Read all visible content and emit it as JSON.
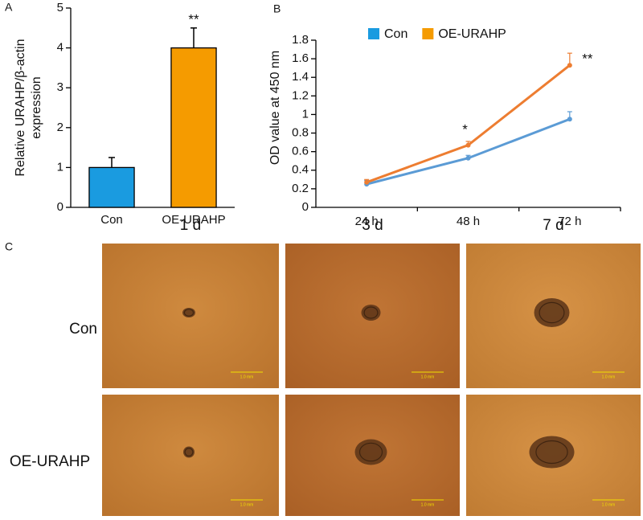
{
  "chart_data": [
    {
      "type": "bar",
      "panel": "A",
      "ylabel": [
        "Relative URAHP/β-actin",
        "expression"
      ],
      "categories": [
        "Con",
        "OE-URAHP"
      ],
      "values": [
        1.0,
        4.0
      ],
      "errors": [
        0.25,
        0.5
      ],
      "colors": [
        "#1a9be0",
        "#f59b00"
      ],
      "significance": [
        null,
        "**"
      ],
      "ylim": [
        0,
        5
      ],
      "yticks": [
        0,
        1,
        2,
        3,
        4,
        5
      ]
    },
    {
      "type": "line",
      "panel": "B",
      "ylabel": "OD value at 450 nm",
      "categories": [
        "24 h",
        "48 h",
        "72 h"
      ],
      "series": [
        {
          "name": "Con",
          "color": "#5b9bd5",
          "legend_color": "#1a9be0",
          "values": [
            0.25,
            0.53,
            0.95
          ],
          "errors": [
            0.04,
            0.03,
            0.08
          ],
          "significance": [
            null,
            null,
            null
          ]
        },
        {
          "name": "OE-URAHP",
          "color": "#ed7d31",
          "legend_color": "#f59b00",
          "values": [
            0.27,
            0.67,
            1.53
          ],
          "errors": [
            0.03,
            0.04,
            0.13
          ],
          "significance": [
            null,
            "*",
            "**"
          ]
        }
      ],
      "legend": "top",
      "ylim": [
        0,
        1.8
      ],
      "yticks": [
        0,
        0.2,
        0.4,
        0.6,
        0.8,
        1,
        1.2,
        1.4,
        1.6,
        1.8
      ]
    }
  ],
  "image_grid": {
    "panel": "C",
    "columns": [
      "1 d",
      "3 d",
      "7 d"
    ],
    "rows": [
      "Con",
      "OE-URAHP"
    ],
    "scale_label": "1.0 mm"
  }
}
